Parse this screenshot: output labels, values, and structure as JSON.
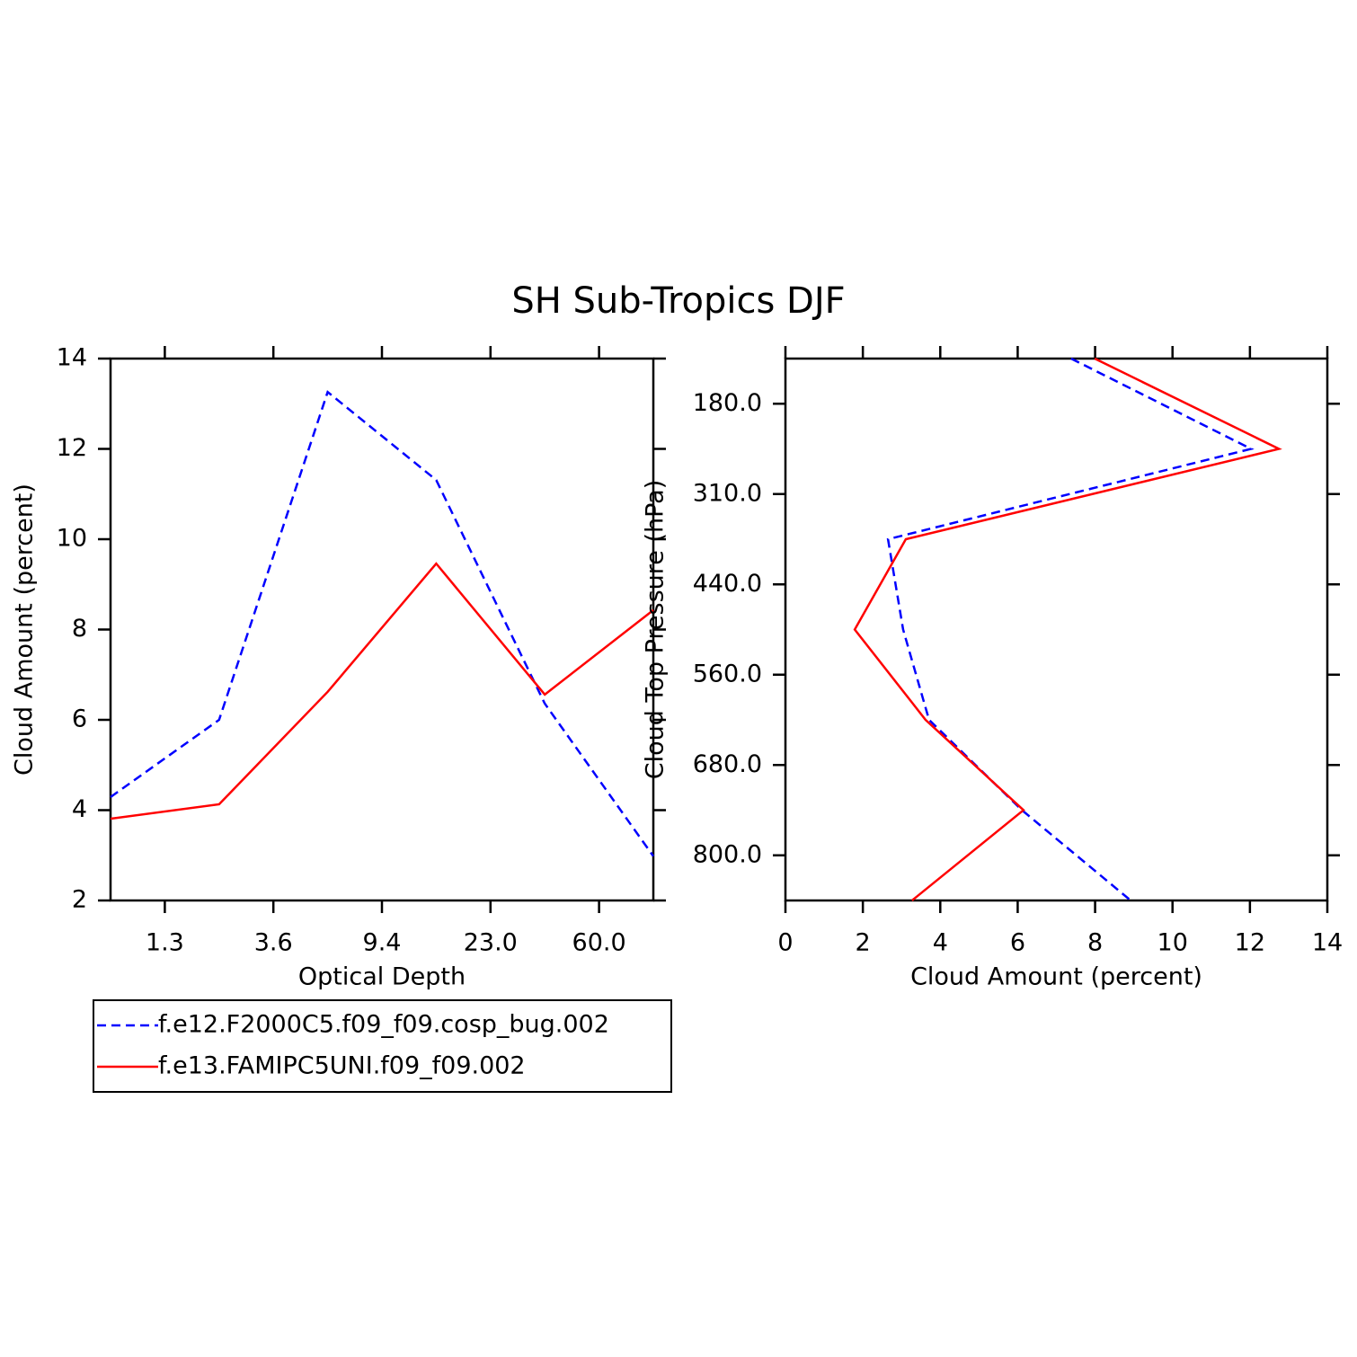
{
  "title": "SH Sub-Tropics DJF",
  "chart_data": [
    {
      "type": "line",
      "orientation": "vertical",
      "x_label": "Optical Depth",
      "y_label": "Cloud Amount (percent)",
      "x": [
        0,
        1,
        2,
        3,
        4,
        5
      ],
      "xlim": [
        0,
        5
      ],
      "xticks": [
        {
          "value": 0.5,
          "label": "1.3"
        },
        {
          "value": 1.5,
          "label": "3.6"
        },
        {
          "value": 2.5,
          "label": "9.4"
        },
        {
          "value": 3.5,
          "label": "23.0"
        },
        {
          "value": 4.5,
          "label": "60.0"
        }
      ],
      "ylim": [
        2,
        14
      ],
      "yticks": [
        2,
        4,
        6,
        8,
        10,
        12,
        14
      ],
      "series": [
        {
          "name": "f.e12.F2000C5.f09_f09.cosp_bug.002",
          "color": "#0000ff",
          "dashed": true,
          "values": [
            4.29,
            6.0,
            13.26,
            11.31,
            6.36,
            2.98
          ]
        },
        {
          "name": "f.e13.FAMIPC5UNI.f09_f09.002",
          "color": "#ff0000",
          "dashed": false,
          "values": [
            3.81,
            4.13,
            6.62,
            9.46,
            6.56,
            8.43
          ]
        }
      ]
    },
    {
      "type": "line",
      "orientation": "horizontal",
      "x_label": "Cloud Amount (percent)",
      "y_label": "Cloud Top Pressure (hPa)",
      "y": [
        0,
        1,
        2,
        3,
        4,
        5,
        6
      ],
      "ylim": [
        6,
        0
      ],
      "yticks": [
        {
          "value": 0.5,
          "label": "180.0"
        },
        {
          "value": 1.5,
          "label": "310.0"
        },
        {
          "value": 2.5,
          "label": "440.0"
        },
        {
          "value": 3.5,
          "label": "560.0"
        },
        {
          "value": 4.5,
          "label": "680.0"
        },
        {
          "value": 5.5,
          "label": "800.0"
        }
      ],
      "xlim": [
        0,
        14
      ],
      "xticks": [
        0,
        2,
        4,
        6,
        8,
        10,
        12,
        14
      ],
      "series": [
        {
          "color": "#0000ff",
          "dashed": true,
          "values": [
            7.38,
            12.03,
            2.65,
            3.04,
            3.71,
            6.11,
            8.92
          ]
        },
        {
          "color": "#ff0000",
          "dashed": false,
          "values": [
            7.99,
            12.75,
            3.11,
            1.79,
            3.62,
            6.15,
            3.27
          ]
        }
      ]
    }
  ]
}
